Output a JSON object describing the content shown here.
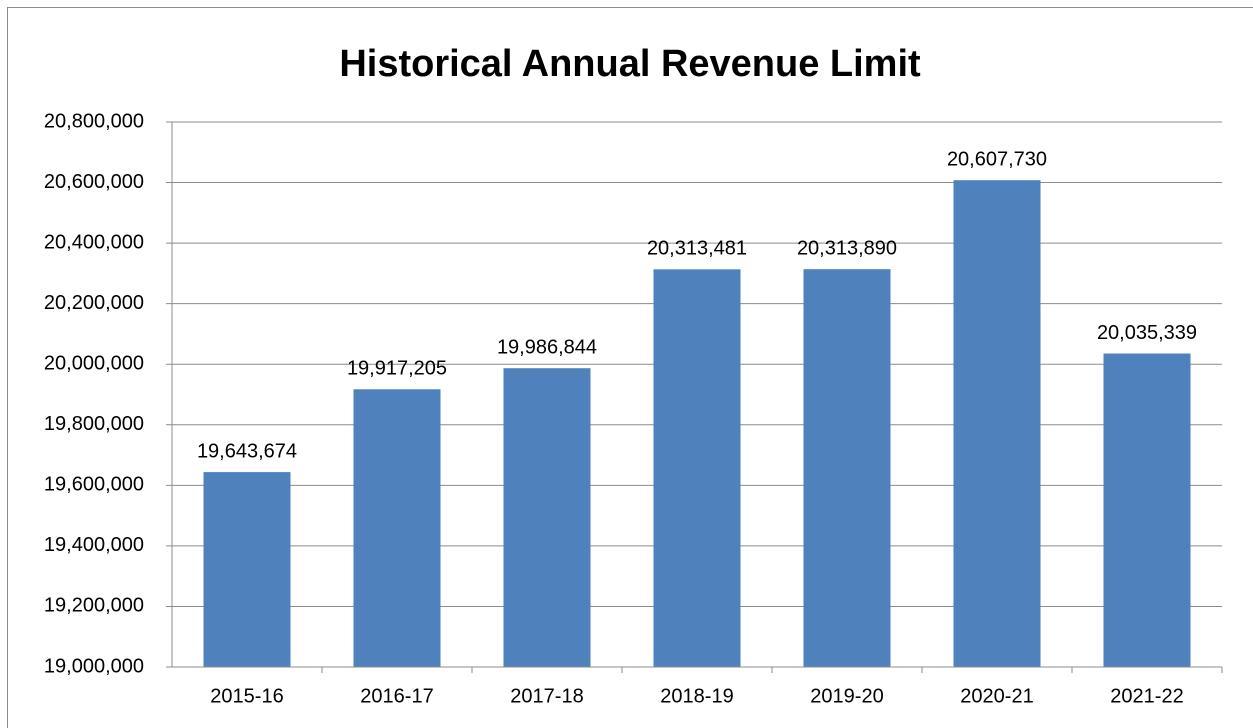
{
  "chart_data": {
    "type": "bar",
    "title": "Historical Annual Revenue Limit",
    "categories": [
      "2015-16",
      "2016-17",
      "2017-18",
      "2018-19",
      "2019-20",
      "2020-21",
      "2021-22"
    ],
    "values": [
      19643674,
      19917205,
      19986844,
      20313481,
      20313890,
      20607730,
      20035339
    ],
    "value_labels": [
      "19,643,674",
      "19,917,205",
      "19,986,844",
      "20,313,481",
      "20,313,890",
      "20,607,730",
      "20,035,339"
    ],
    "color": "#4f81bd",
    "ylim": [
      19000000,
      20800000
    ],
    "yticks": [
      {
        "value": 19000000,
        "label": "19,000,000"
      },
      {
        "value": 19200000,
        "label": "19,200,000"
      },
      {
        "value": 19400000,
        "label": "19,400,000"
      },
      {
        "value": 19600000,
        "label": "19,600,000"
      },
      {
        "value": 19800000,
        "label": "19,800,000"
      },
      {
        "value": 20000000,
        "label": "20,000,000"
      },
      {
        "value": 20200000,
        "label": "20,200,000"
      },
      {
        "value": 20400000,
        "label": "20,400,000"
      },
      {
        "value": 20600000,
        "label": "20,600,000"
      },
      {
        "value": 20800000,
        "label": "20,800,000"
      }
    ],
    "grid": true
  }
}
